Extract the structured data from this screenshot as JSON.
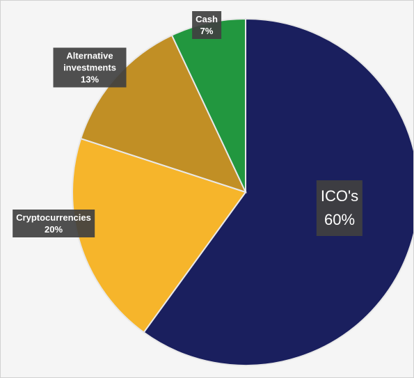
{
  "chart_data": {
    "type": "pie",
    "categories": [
      "ICO's",
      "Cryptocurrencies",
      "Alternative investments",
      "Cash"
    ],
    "values": [
      60,
      20,
      13,
      7
    ],
    "value_labels": [
      "60%",
      "20%",
      "13%",
      "7%"
    ],
    "colors": [
      "#1a1f5e",
      "#f6b52b",
      "#c18f25",
      "#22973f"
    ]
  }
}
